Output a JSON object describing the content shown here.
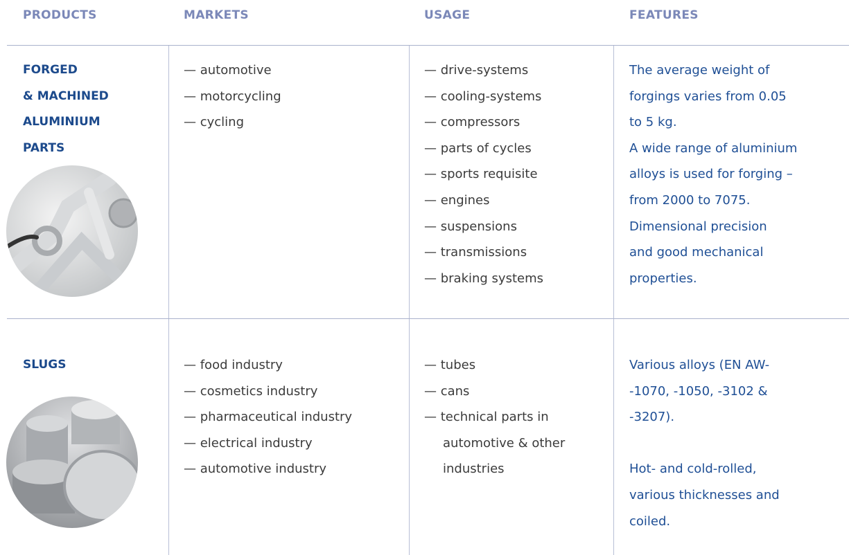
{
  "header": {
    "columns": [
      "PRODUCTS",
      "MARKETS",
      "USAGE",
      "FEATURES"
    ]
  },
  "rows": [
    {
      "product": [
        "FORGED",
        "& MACHINED",
        "ALUMINIUM",
        "PARTS"
      ],
      "markets": [
        "— automotive",
        "— motorcycling",
        "— cycling"
      ],
      "usage": [
        "— drive-systems",
        "— cooling-systems",
        "— compressors",
        "— parts of cycles",
        "— sports requisite",
        "— engines",
        "— suspensions",
        "— transmissions",
        "— braking systems"
      ],
      "features": [
        [
          "The average weight of",
          "forgings varies from 0.05",
          "to 5 kg."
        ],
        [
          "A wide range of aluminium",
          "alloys is used for forging –",
          "from 2000 to 7075."
        ],
        [
          "Dimensional precision",
          "and good mechanical",
          "properties."
        ]
      ]
    },
    {
      "product": [
        "SLUGS"
      ],
      "markets": [
        "— food industry",
        "— cosmetics industry",
        "— pharmaceutical industry",
        "— electrical industry",
        "— automotive industry"
      ],
      "usage": [
        "— tubes",
        "— cans",
        "— technical parts in automotive & other industries"
      ],
      "features": [
        [
          "Various alloys (EN AW-",
          "-1070, -1050, -3102 &",
          "-3207)."
        ],
        [
          "Hot- and cold-rolled,",
          "various thicknesses and",
          "coiled."
        ]
      ]
    }
  ]
}
